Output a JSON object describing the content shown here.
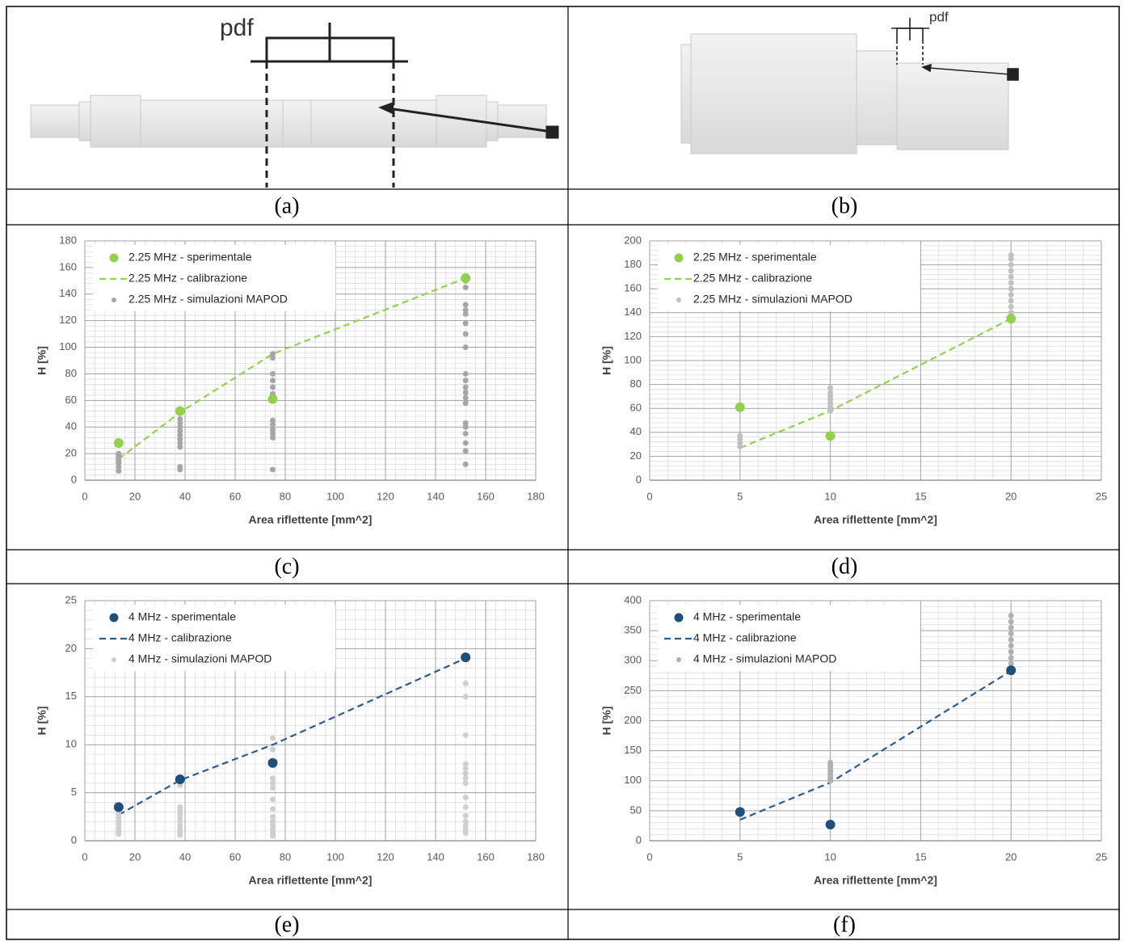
{
  "panels": [
    {
      "caption": "(a)",
      "label": "pdf"
    },
    {
      "caption": "(b)",
      "label": "pdf"
    },
    {
      "caption": "(c)"
    },
    {
      "caption": "(d)"
    },
    {
      "caption": "(e)"
    },
    {
      "caption": "(f)"
    }
  ],
  "chart_data": [
    {
      "type": "scatter",
      "xlabel": "Area riflettente [mm^2]",
      "ylabel": "H [%]",
      "xlim": [
        0,
        180
      ],
      "xticks": [
        0,
        20,
        40,
        60,
        80,
        100,
        120,
        140,
        160,
        180
      ],
      "ylim": [
        0,
        180
      ],
      "yticks": [
        0,
        20,
        40,
        60,
        80,
        100,
        120,
        140,
        160,
        180
      ],
      "grid": true,
      "minor_grid": true,
      "legend": "upper left",
      "series": [
        {
          "name": "2.25 MHz - sperimentale",
          "color": "#92d050",
          "style": "marker",
          "x": [
            13.5,
            38,
            75,
            152
          ],
          "values": [
            28,
            52,
            61,
            152
          ]
        },
        {
          "name": "2.25 MHz - calibrazione",
          "color": "#92d050",
          "style": "dashed",
          "x": [
            13.5,
            38,
            75,
            152
          ],
          "values": [
            16,
            51,
            95,
            152
          ]
        },
        {
          "name": "2.25 MHz - simulazioni MAPOD",
          "color": "#a6a6a6",
          "style": "small-marker",
          "x": [
            13.5,
            13.5,
            13.5,
            13.5,
            13.5,
            13.5,
            13.5,
            38,
            38,
            38,
            38,
            38,
            38,
            38,
            38,
            38,
            38,
            75,
            75,
            75,
            75,
            75,
            75,
            75,
            75,
            75,
            75,
            75,
            75,
            75,
            152,
            152,
            152,
            152,
            152,
            152,
            152,
            152,
            152,
            152,
            152,
            152,
            152,
            152,
            152,
            152,
            152,
            152,
            152,
            152
          ],
          "values": [
            7,
            10,
            13,
            15,
            17,
            19,
            20,
            8,
            10,
            25,
            28,
            31,
            34,
            37,
            40,
            43,
            46,
            8,
            32,
            35,
            38,
            42,
            45,
            60,
            65,
            70,
            75,
            80,
            92,
            95,
            12,
            22,
            28,
            35,
            40,
            43,
            58,
            62,
            66,
            70,
            75,
            80,
            100,
            110,
            118,
            125,
            128,
            132,
            145,
            150
          ]
        }
      ]
    },
    {
      "type": "scatter",
      "xlabel": "Area riflettente [mm^2]",
      "ylabel": "H [%]",
      "xlim": [
        0,
        25
      ],
      "xticks": [
        0,
        5,
        10,
        15,
        20,
        25
      ],
      "ylim": [
        0,
        200
      ],
      "yticks": [
        0,
        20,
        40,
        60,
        80,
        100,
        120,
        140,
        160,
        180,
        200
      ],
      "grid": true,
      "minor_grid": true,
      "legend": "upper left",
      "series": [
        {
          "name": "2.25 MHz - sperimentale",
          "color": "#92d050",
          "style": "marker",
          "x": [
            5,
            10,
            20
          ],
          "values": [
            61,
            37,
            135
          ]
        },
        {
          "name": "2.25 MHz - calibrazione",
          "color": "#92d050",
          "style": "dashed",
          "x": [
            5,
            10,
            20
          ],
          "values": [
            27,
            58,
            135
          ]
        },
        {
          "name": "2.25 MHz - simulazioni MAPOD",
          "color": "#c0c0c0",
          "style": "small-marker",
          "x": [
            5,
            5,
            5,
            5,
            10,
            10,
            10,
            10,
            10,
            10,
            10,
            20,
            20,
            20,
            20,
            20,
            20,
            20,
            20,
            20,
            20,
            20,
            20
          ],
          "values": [
            28,
            31,
            34,
            37,
            58,
            61,
            64,
            67,
            70,
            73,
            77,
            135,
            140,
            145,
            150,
            155,
            160,
            165,
            170,
            175,
            180,
            185,
            188
          ]
        }
      ]
    },
    {
      "type": "scatter",
      "xlabel": "Area riflettente [mm^2]",
      "ylabel": "H [%]",
      "xlim": [
        0,
        180
      ],
      "xticks": [
        0,
        20,
        40,
        60,
        80,
        100,
        120,
        140,
        160,
        180
      ],
      "ylim": [
        0,
        25
      ],
      "yticks": [
        0,
        5,
        10,
        15,
        20,
        25
      ],
      "grid": true,
      "minor_grid": true,
      "legend": "upper left",
      "series": [
        {
          "name": "4 MHz - sperimentale",
          "color": "#1f4e79",
          "style": "marker",
          "x": [
            13.5,
            38,
            75,
            152
          ],
          "values": [
            3.5,
            6.4,
            8.1,
            19.1
          ]
        },
        {
          "name": "4 MHz - calibrazione",
          "color": "#2e5a8c",
          "style": "dashed",
          "x": [
            13.5,
            38,
            75,
            152
          ],
          "values": [
            2.7,
            6.3,
            10,
            19
          ]
        },
        {
          "name": "4 MHz - simulazioni MAPOD",
          "color": "#cfcfcf",
          "style": "small-marker",
          "x": [
            13.5,
            13.5,
            13.5,
            13.5,
            13.5,
            13.5,
            13.5,
            13.5,
            38,
            38,
            38,
            38,
            38,
            38,
            38,
            38,
            38,
            38,
            38,
            75,
            75,
            75,
            75,
            75,
            75,
            75,
            75,
            75,
            75,
            75,
            75,
            75,
            152,
            152,
            152,
            152,
            152,
            152,
            152,
            152,
            152,
            152,
            152,
            152,
            152,
            152,
            152,
            152
          ],
          "values": [
            0.7,
            1,
            1.3,
            1.7,
            2,
            2.4,
            2.8,
            3.2,
            0.6,
            0.9,
            1.2,
            1.6,
            2,
            2.4,
            2.8,
            3.2,
            3.5,
            5.8,
            6.3,
            0.5,
            0.8,
            1.2,
            1.6,
            2,
            2.5,
            3.3,
            4.3,
            5.5,
            6,
            6.5,
            9.5,
            10.7,
            0.8,
            1.2,
            1.6,
            2,
            2.6,
            3.5,
            4.5,
            6,
            6.5,
            7,
            7.5,
            8,
            11,
            15,
            16.4,
            19
          ]
        }
      ]
    },
    {
      "type": "scatter",
      "xlabel": "Area riflettente [mm^2]",
      "ylabel": "H [%]",
      "xlim": [
        0,
        25
      ],
      "xticks": [
        0,
        5,
        10,
        15,
        20,
        25
      ],
      "ylim": [
        0,
        400
      ],
      "yticks": [
        0,
        50,
        100,
        150,
        200,
        250,
        300,
        350,
        400
      ],
      "grid": true,
      "minor_grid": true,
      "legend": "upper left",
      "series": [
        {
          "name": "4 MHz - sperimentale",
          "color": "#1f4e79",
          "style": "marker",
          "x": [
            5,
            10,
            20
          ],
          "values": [
            48,
            27,
            284
          ]
        },
        {
          "name": "4 MHz - calibrazione",
          "color": "#2e5a8c",
          "style": "dashed",
          "x": [
            5,
            10,
            20
          ],
          "values": [
            35,
            97,
            283
          ]
        },
        {
          "name": "4 MHz - simulazioni MAPOD",
          "color": "#b0b0b0",
          "style": "small-marker",
          "x": [
            5,
            10,
            10,
            10,
            10,
            10,
            10,
            10,
            20,
            20,
            20,
            20,
            20,
            20,
            20,
            20,
            20,
            20
          ],
          "values": [
            45,
            100,
            105,
            110,
            115,
            120,
            125,
            130,
            285,
            295,
            305,
            315,
            325,
            335,
            345,
            355,
            365,
            375
          ]
        }
      ]
    }
  ]
}
